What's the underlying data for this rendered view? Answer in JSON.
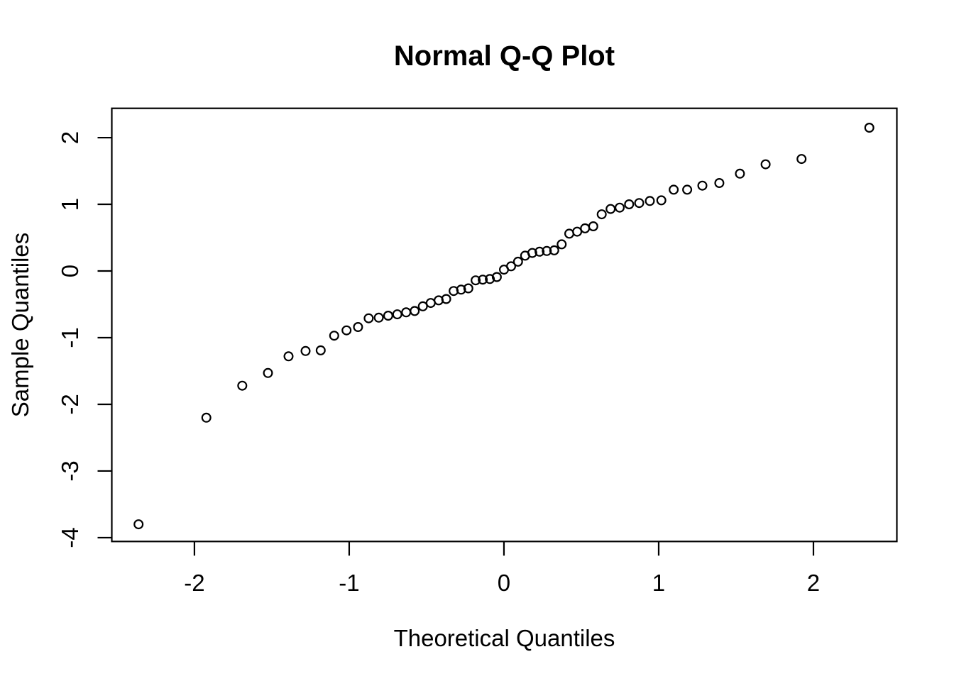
{
  "chart_data": {
    "type": "scatter",
    "title": "Normal Q-Q Plot",
    "xlabel": "Theoretical Quantiles",
    "ylabel": "Sample Quantiles",
    "x_ticks": [
      -2,
      -1,
      0,
      1,
      2
    ],
    "y_ticks": [
      2,
      1,
      0,
      -1,
      -2,
      -3,
      -4
    ],
    "xlim": [
      -2.534,
      2.539
    ],
    "ylim": [
      -4.057,
      2.44
    ],
    "grid": false,
    "legend": null,
    "marker": {
      "shape": "open-circle",
      "radius_px": 5.9,
      "stroke_px": 2.2
    },
    "colors": {
      "foreground": "#000000",
      "background": "#ffffff"
    },
    "points": [
      [
        -2.361,
        -3.8
      ],
      [
        -1.923,
        -2.2
      ],
      [
        -1.691,
        -1.72
      ],
      [
        -1.525,
        -1.53
      ],
      [
        -1.392,
        -1.28
      ],
      [
        -1.282,
        -1.2
      ],
      [
        -1.184,
        -1.19
      ],
      [
        -1.097,
        -0.97
      ],
      [
        -1.017,
        -0.89
      ],
      [
        -0.943,
        -0.84
      ],
      [
        -0.874,
        -0.71
      ],
      [
        -0.809,
        -0.7
      ],
      [
        -0.748,
        -0.67
      ],
      [
        -0.689,
        -0.65
      ],
      [
        -0.632,
        -0.62
      ],
      [
        -0.577,
        -0.6
      ],
      [
        -0.524,
        -0.53
      ],
      [
        -0.473,
        -0.48
      ],
      [
        -0.422,
        -0.44
      ],
      [
        -0.373,
        -0.42
      ],
      [
        -0.325,
        -0.3
      ],
      [
        -0.277,
        -0.28
      ],
      [
        -0.23,
        -0.26
      ],
      [
        -0.183,
        -0.14
      ],
      [
        -0.137,
        -0.13
      ],
      [
        -0.091,
        -0.12
      ],
      [
        -0.046,
        -0.09
      ],
      [
        0.0,
        0.02
      ],
      [
        0.046,
        0.07
      ],
      [
        0.091,
        0.14
      ],
      [
        0.137,
        0.23
      ],
      [
        0.183,
        0.27
      ],
      [
        0.23,
        0.29
      ],
      [
        0.277,
        0.3
      ],
      [
        0.325,
        0.31
      ],
      [
        0.373,
        0.4
      ],
      [
        0.422,
        0.56
      ],
      [
        0.473,
        0.59
      ],
      [
        0.524,
        0.64
      ],
      [
        0.577,
        0.67
      ],
      [
        0.632,
        0.85
      ],
      [
        0.689,
        0.93
      ],
      [
        0.748,
        0.95
      ],
      [
        0.809,
        1.0
      ],
      [
        0.874,
        1.02
      ],
      [
        0.943,
        1.05
      ],
      [
        1.017,
        1.06
      ],
      [
        1.097,
        1.22
      ],
      [
        1.184,
        1.22
      ],
      [
        1.282,
        1.28
      ],
      [
        1.392,
        1.32
      ],
      [
        1.525,
        1.46
      ],
      [
        1.691,
        1.6
      ],
      [
        1.923,
        1.68
      ],
      [
        2.361,
        2.15
      ]
    ]
  }
}
